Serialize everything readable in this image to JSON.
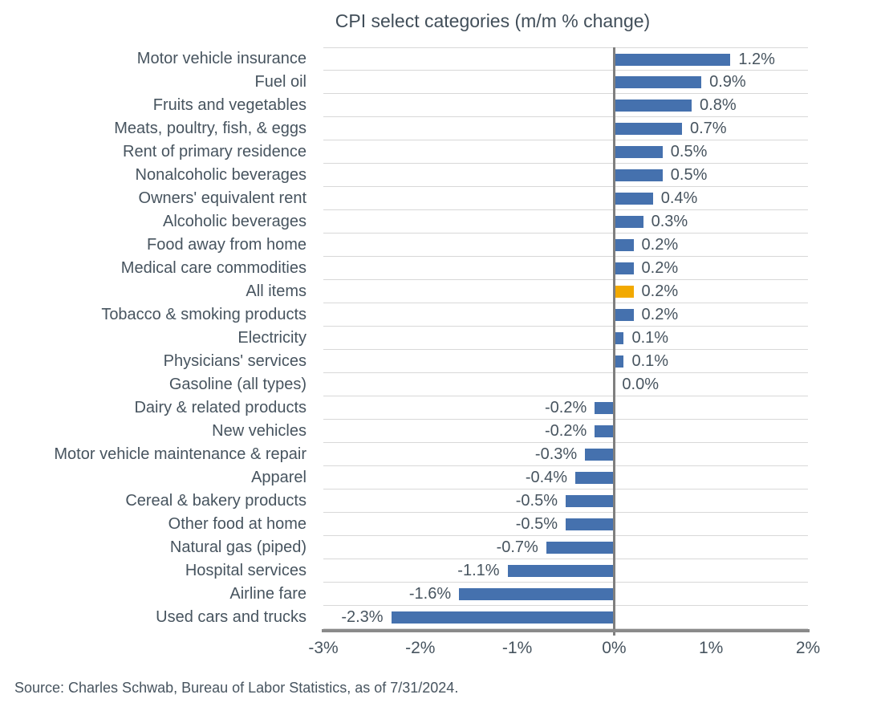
{
  "title": "CPI select categories (m/m % change)",
  "source": "Source: Charles Schwab, Bureau of Labor Statistics, as of 7/31/2024.",
  "colors": {
    "bar": "#4571AE",
    "highlight": "#F2A900",
    "gridline": "#D8D8D8",
    "zero_line": "#7F7F7F",
    "axis_line": "#8A8A8A",
    "text": "#47545F"
  },
  "chart_data": {
    "type": "bar",
    "orientation": "horizontal",
    "title": "CPI select categories (m/m % change)",
    "xlabel": "m/m % change",
    "ylabel": "",
    "xlim": [
      -3,
      2
    ],
    "x_ticks": [
      "-3%",
      "-2%",
      "-1%",
      "0%",
      "1%",
      "2%"
    ],
    "x_tick_values": [
      -3,
      -2,
      -1,
      0,
      1,
      2
    ],
    "grid": "horizontal row separators only, vertical zero line",
    "legend": "none",
    "highlight_category": "All items",
    "categories": [
      "Motor vehicle insurance",
      "Fuel oil",
      "Fruits and vegetables",
      "Meats, poultry, fish, & eggs",
      "Rent of primary residence",
      "Nonalcoholic beverages",
      "Owners' equivalent rent",
      "Alcoholic beverages",
      "Food away from home",
      "Medical care commodities",
      "All items",
      "Tobacco & smoking products",
      "Electricity",
      "Physicians' services",
      "Gasoline (all types)",
      "Dairy & related products",
      "New vehicles",
      "Motor vehicle maintenance & repair",
      "Apparel",
      "Cereal & bakery products",
      "Other food at home",
      "Natural gas (piped)",
      "Hospital services",
      "Airline fare",
      "Used cars and trucks"
    ],
    "values": [
      1.2,
      0.9,
      0.8,
      0.7,
      0.5,
      0.5,
      0.4,
      0.3,
      0.2,
      0.2,
      0.2,
      0.2,
      0.1,
      0.1,
      0.0,
      -0.2,
      -0.2,
      -0.3,
      -0.4,
      -0.5,
      -0.5,
      -0.7,
      -1.1,
      -1.6,
      -2.3
    ],
    "value_labels": [
      "1.2%",
      "0.9%",
      "0.8%",
      "0.7%",
      "0.5%",
      "0.5%",
      "0.4%",
      "0.3%",
      "0.2%",
      "0.2%",
      "0.2%",
      "0.2%",
      "0.1%",
      "0.1%",
      "0.0%",
      "-0.2%",
      "-0.2%",
      "-0.3%",
      "-0.4%",
      "-0.5%",
      "-0.5%",
      "-0.7%",
      "-1.1%",
      "-1.6%",
      "-2.3%"
    ]
  }
}
